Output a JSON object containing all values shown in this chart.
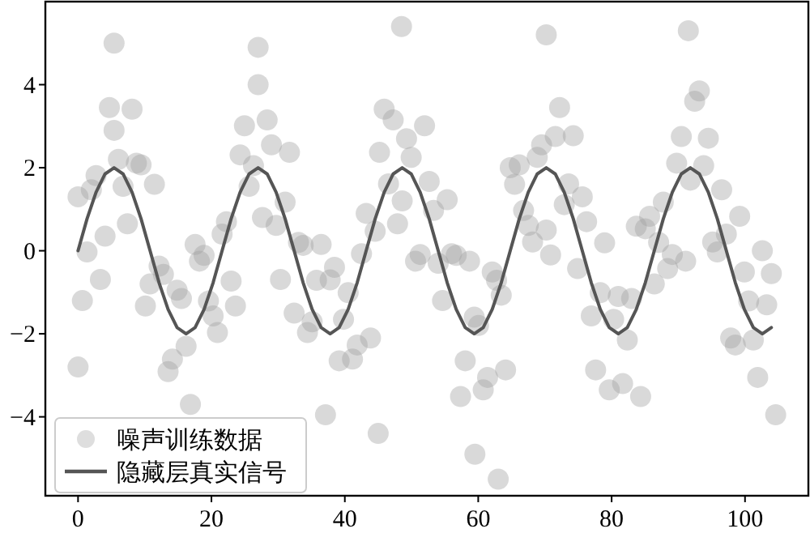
{
  "chart_data": {
    "type": "scatter",
    "xlim": [
      -4.9,
      109.5
    ],
    "ylim": [
      -5.9,
      6.0
    ],
    "xticks": [
      0,
      20,
      40,
      60,
      80,
      100
    ],
    "yticks": [
      -4,
      -2,
      0,
      2,
      4
    ],
    "grid": false,
    "legend": "bottom left",
    "series": [
      {
        "name": "噪声训练数据",
        "color": "#a0a0a0",
        "x": [
          0,
          1.35,
          2.7,
          4.05,
          5.4,
          6.75,
          8.1,
          9.45,
          10.8,
          12.15,
          13.5,
          14.85,
          16.2,
          17.55,
          18.9,
          20.25,
          21.6,
          22.95,
          24.3,
          25.65,
          27,
          28.35,
          29.7,
          31.05,
          32.4,
          33.75,
          35.1,
          36.45,
          37.8,
          39.15,
          40.5,
          41.85,
          43.2,
          44.55,
          45.9,
          47.25,
          48.6,
          49.95,
          51.3,
          52.65,
          54,
          55.35,
          56.7,
          58.05,
          59.4,
          60.75,
          62.1,
          63.45,
          64.8,
          66.15,
          67.5,
          68.85,
          70.2,
          71.55,
          72.9,
          74.25,
          75.6,
          76.95,
          78.3,
          79.65,
          81,
          82.35,
          83.7,
          85.05,
          86.4,
          87.75,
          89.1,
          90.45,
          91.8,
          93.15,
          94.5,
          95.85,
          97.2,
          98.55,
          99.9,
          101.25,
          102.6,
          103.95,
          0.65,
          2,
          3.35,
          4.7,
          6.05,
          7.4,
          8.75,
          10.1,
          11.45,
          12.8,
          14.15,
          15.5,
          16.85,
          18.2,
          19.55,
          20.9,
          22.25,
          23.6,
          24.95,
          26.3,
          27.65,
          29,
          30.35,
          31.7,
          33.05,
          34.4,
          35.75,
          37.1,
          38.45,
          39.8,
          41.15,
          42.5,
          43.85,
          45.2,
          46.55,
          47.9,
          49.25,
          50.6,
          51.95,
          53.3,
          54.65,
          56,
          57.35,
          58.7,
          60.05,
          61.4,
          62.75,
          64.1,
          65.45,
          66.8,
          68.15,
          69.5,
          70.85,
          72.2,
          73.55,
          74.9,
          76.25,
          77.6,
          78.95,
          80.3,
          81.65,
          83,
          84.35,
          85.7,
          87.05,
          88.4,
          89.75,
          91.1,
          92.45,
          93.8,
          95.15,
          96.5,
          97.85,
          99.2,
          100.55,
          101.9,
          103.25,
          104.6,
          5.4,
          27,
          48.5,
          70.2,
          91.5,
          59.5,
          63,
          0,
          45
        ],
        "values": [
          1.3,
          -0.03,
          1.81,
          0.35,
          2.9,
          1.55,
          3.41,
          2.07,
          -0.8,
          -0.37,
          -2.91,
          -0.95,
          -2.3,
          0.15,
          -0.11,
          -1.57,
          0.4,
          -0.73,
          2.31,
          1.55,
          4,
          3.15,
          0.61,
          1.17,
          -1.5,
          0.13,
          -1.71,
          0.15,
          -0.7,
          -2.65,
          -1.01,
          -2.27,
          0.9,
          0.47,
          3.41,
          3.15,
          1.2,
          2.25,
          -0.09,
          1.67,
          -0.3,
          1.23,
          -0.11,
          -2.65,
          -1.6,
          -3.35,
          -0.51,
          -1.07,
          2,
          2.07,
          0.61,
          2.25,
          0.5,
          2.75,
          1.11,
          2.77,
          1.3,
          -1.57,
          -1.01,
          -3.35,
          -1.1,
          -2.15,
          0.59,
          0.53,
          -0.8,
          1.17,
          -0.09,
          2.75,
          1.7,
          3.85,
          2.71,
          -0.03,
          0.4,
          -2.27,
          -0.51,
          -2.15,
          0,
          -0.55,
          -1.2,
          1.47,
          -0.69,
          3.45,
          2.2,
          0.65,
          2.11,
          -1.33,
          1.6,
          -0.57,
          -2.61,
          -1.15,
          -3.7,
          -0.25,
          -1.21,
          -1.97,
          0.7,
          -1.33,
          3.01,
          2.05,
          0.8,
          2.55,
          -0.69,
          2.37,
          0.2,
          -1.97,
          -0.71,
          -3.95,
          -0.4,
          -1.65,
          -2.61,
          -0.07,
          -2.1,
          2.37,
          1.61,
          0.65,
          2.7,
          -0.25,
          3.01,
          0.97,
          -1.2,
          -0.07,
          -3.51,
          -0.25,
          -1.8,
          -3.05,
          -0.71,
          -2.87,
          1.6,
          0.97,
          0.21,
          2.55,
          -0.1,
          3.45,
          1.61,
          -0.43,
          0.7,
          -2.87,
          0.19,
          -1.65,
          -3.2,
          -1.15,
          -3.51,
          0.83,
          0.2,
          -0.43,
          2.11,
          -0.25,
          3.6,
          2.05,
          0.21,
          1.47,
          -2.1,
          0.83,
          -1.21,
          -3.05,
          -1.3,
          -3.95,
          5.0,
          4.9,
          5.4,
          5.2,
          5.3,
          -4.9,
          -5.5,
          -2.8,
          -4.4
        ]
      },
      {
        "name": "隐藏层真实信号",
        "type": "line",
        "color": "#555555",
        "x": [
          0,
          1.35,
          2.7,
          4.05,
          5.4,
          6.75,
          8.1,
          9.45,
          10.8,
          12.15,
          13.5,
          14.85,
          16.2,
          17.55,
          18.9,
          20.25,
          21.6,
          22.95,
          24.3,
          25.65,
          27,
          28.35,
          29.7,
          31.05,
          32.4,
          33.75,
          35.1,
          36.45,
          37.8,
          39.15,
          40.5,
          41.85,
          43.2,
          44.55,
          45.9,
          47.25,
          48.6,
          49.95,
          51.3,
          52.65,
          54,
          55.35,
          56.7,
          58.05,
          59.4,
          60.75,
          62.1,
          63.45,
          64.8,
          66.15,
          67.5,
          68.85,
          70.2,
          71.55,
          72.9,
          74.25,
          75.6,
          76.95,
          78.3,
          79.65,
          81,
          82.35,
          83.7,
          85.05,
          86.4,
          87.75,
          89.1,
          90.45,
          91.8,
          93.15,
          94.5,
          95.85,
          97.2,
          98.55,
          99.9,
          101.25,
          102.6,
          103.95
        ],
        "values": [
          0,
          0.77,
          1.41,
          1.85,
          2,
          1.85,
          1.41,
          0.77,
          0,
          -0.77,
          -1.41,
          -1.85,
          -2,
          -1.85,
          -1.41,
          -0.77,
          0,
          0.77,
          1.41,
          1.85,
          2,
          1.85,
          1.41,
          0.77,
          0,
          -0.77,
          -1.41,
          -1.85,
          -2,
          -1.85,
          -1.41,
          -0.77,
          0,
          0.77,
          1.41,
          1.85,
          2,
          1.85,
          1.41,
          0.77,
          0,
          -0.77,
          -1.41,
          -1.85,
          -2,
          -1.85,
          -1.41,
          -0.77,
          0,
          0.77,
          1.41,
          1.85,
          2,
          1.85,
          1.41,
          0.77,
          0,
          -0.77,
          -1.41,
          -1.85,
          -2,
          -1.85,
          -1.41,
          -0.77,
          0,
          0.77,
          1.41,
          1.85,
          2,
          1.85,
          1.41,
          0.77,
          0,
          -0.77,
          -1.41,
          -1.85,
          -2,
          -1.85
        ]
      }
    ]
  }
}
